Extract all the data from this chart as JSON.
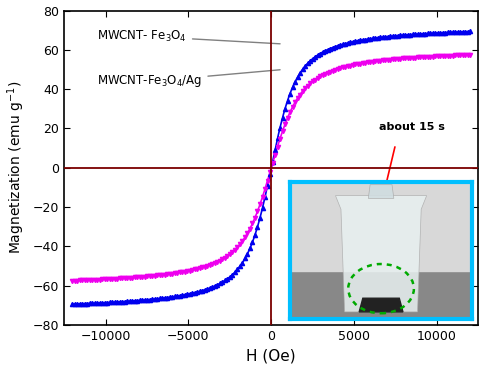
{
  "title": "",
  "xlabel": "H (Oe)",
  "ylabel": "Magnetization (emu g$^{-1}$)",
  "xlim": [
    -12500,
    12500
  ],
  "ylim": [
    -80,
    80
  ],
  "xticks": [
    -10000,
    -5000,
    0,
    5000,
    10000
  ],
  "yticks": [
    -80,
    -60,
    -40,
    -20,
    0,
    20,
    40,
    60,
    80
  ],
  "curve1_color": "#0000EE",
  "curve2_color": "#EE00EE",
  "vline_color": "#7B0000",
  "hline_color": "#7B0000",
  "background_color": "#ffffff",
  "inset_border_color": "#00BFFF",
  "label1": "MWCNT- Fe$_3$O$_4$",
  "label2": "MWCNT-Fe$_3$O$_4$/Ag",
  "Ms1": 73,
  "Ms2": 61,
  "a1": 600,
  "a2": 700,
  "inset_text": "about 15 s",
  "n_scatter": 160
}
